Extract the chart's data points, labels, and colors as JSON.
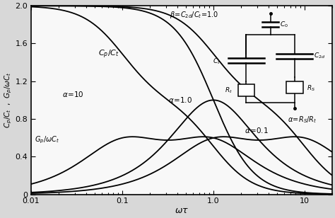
{
  "beta": 1.0,
  "alpha_values": [
    10.0,
    1.0,
    0.1
  ],
  "x_min": 0.01,
  "x_max": 20,
  "y_min": 0,
  "y_max": 2.0,
  "yticks": [
    0,
    0.4,
    0.8,
    1.2,
    1.6,
    2.0
  ],
  "xtick_labels": [
    "0.01",
    "0.1",
    "1.0",
    "10"
  ],
  "xtick_positions": [
    0.01,
    0.1,
    1.0,
    10
  ],
  "line_color": "#000000",
  "bg_color": "#d8d8d8",
  "plot_bg": "#f8f8f8"
}
